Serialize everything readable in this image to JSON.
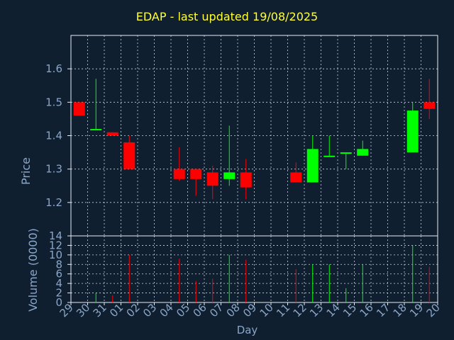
{
  "chart_data": {
    "type": "candlestick",
    "title": "EDAP - last updated 19/08/2025",
    "xlabel": "Day",
    "price_panel": {
      "ylabel": "Price",
      "ylim": [
        1.1,
        1.7
      ],
      "yticks": [
        "1.2",
        "1.3",
        "1.4",
        "1.5",
        "1.6"
      ]
    },
    "volume_panel": {
      "ylabel": "Volume (0000)",
      "ylim": [
        0,
        14
      ],
      "yticks": [
        "0",
        "2",
        "4",
        "6",
        "8",
        "10",
        "12",
        "14"
      ]
    },
    "x_ticks": [
      "29",
      "30",
      "31",
      "01",
      "02",
      "03",
      "04",
      "05",
      "06",
      "07",
      "08",
      "09",
      "10",
      "11",
      "12",
      "13",
      "14",
      "15",
      "16",
      "17",
      "18",
      "19",
      "20"
    ],
    "grid": true,
    "colors": {
      "up": "#00ff00",
      "down": "#ff0000",
      "background": "#0f1f30",
      "title": "#ffff33",
      "axis_text": "#8aa6c8"
    },
    "candles": [
      {
        "x": "29",
        "open": 1.5,
        "high": 1.5,
        "low": 1.46,
        "close": 1.46,
        "volume": 0
      },
      {
        "x": "30",
        "open": 1.42,
        "high": 1.57,
        "low": 1.42,
        "close": 1.42,
        "volume": 2
      },
      {
        "x": "31",
        "open": 1.41,
        "high": 1.41,
        "low": 1.4,
        "close": 1.4,
        "volume": 1.5
      },
      {
        "x": "01",
        "open": 1.38,
        "high": 1.4,
        "low": 1.3,
        "close": 1.3,
        "volume": 10
      },
      {
        "x": "04",
        "open": 1.3,
        "high": 1.365,
        "low": 1.265,
        "close": 1.27,
        "volume": 9.2
      },
      {
        "x": "05",
        "open": 1.3,
        "high": 1.3,
        "low": 1.22,
        "close": 1.27,
        "volume": 4.5
      },
      {
        "x": "06",
        "open": 1.29,
        "high": 1.31,
        "low": 1.21,
        "close": 1.25,
        "volume": 5
      },
      {
        "x": "07",
        "open": 1.27,
        "high": 1.43,
        "low": 1.25,
        "close": 1.29,
        "volume": 10
      },
      {
        "x": "08",
        "open": 1.29,
        "high": 1.33,
        "low": 1.21,
        "close": 1.245,
        "volume": 9
      },
      {
        "x": "11",
        "open": 1.29,
        "high": 1.32,
        "low": 1.26,
        "close": 1.26,
        "volume": 7
      },
      {
        "x": "12",
        "open": 1.26,
        "high": 1.4,
        "low": 1.26,
        "close": 1.36,
        "volume": 8
      },
      {
        "x": "13",
        "open": 1.34,
        "high": 1.4,
        "low": 1.34,
        "close": 1.34,
        "volume": 8
      },
      {
        "x": "14",
        "open": 1.35,
        "high": 1.35,
        "low": 1.3,
        "close": 1.35,
        "volume": 3
      },
      {
        "x": "15",
        "open": 1.34,
        "high": 1.385,
        "low": 1.34,
        "close": 1.36,
        "volume": 8
      },
      {
        "x": "18",
        "open": 1.35,
        "high": 1.5,
        "low": 1.35,
        "close": 1.475,
        "volume": 12
      },
      {
        "x": "19",
        "open": 1.5,
        "high": 1.57,
        "low": 1.45,
        "close": 1.48,
        "volume": 7.5
      }
    ]
  }
}
